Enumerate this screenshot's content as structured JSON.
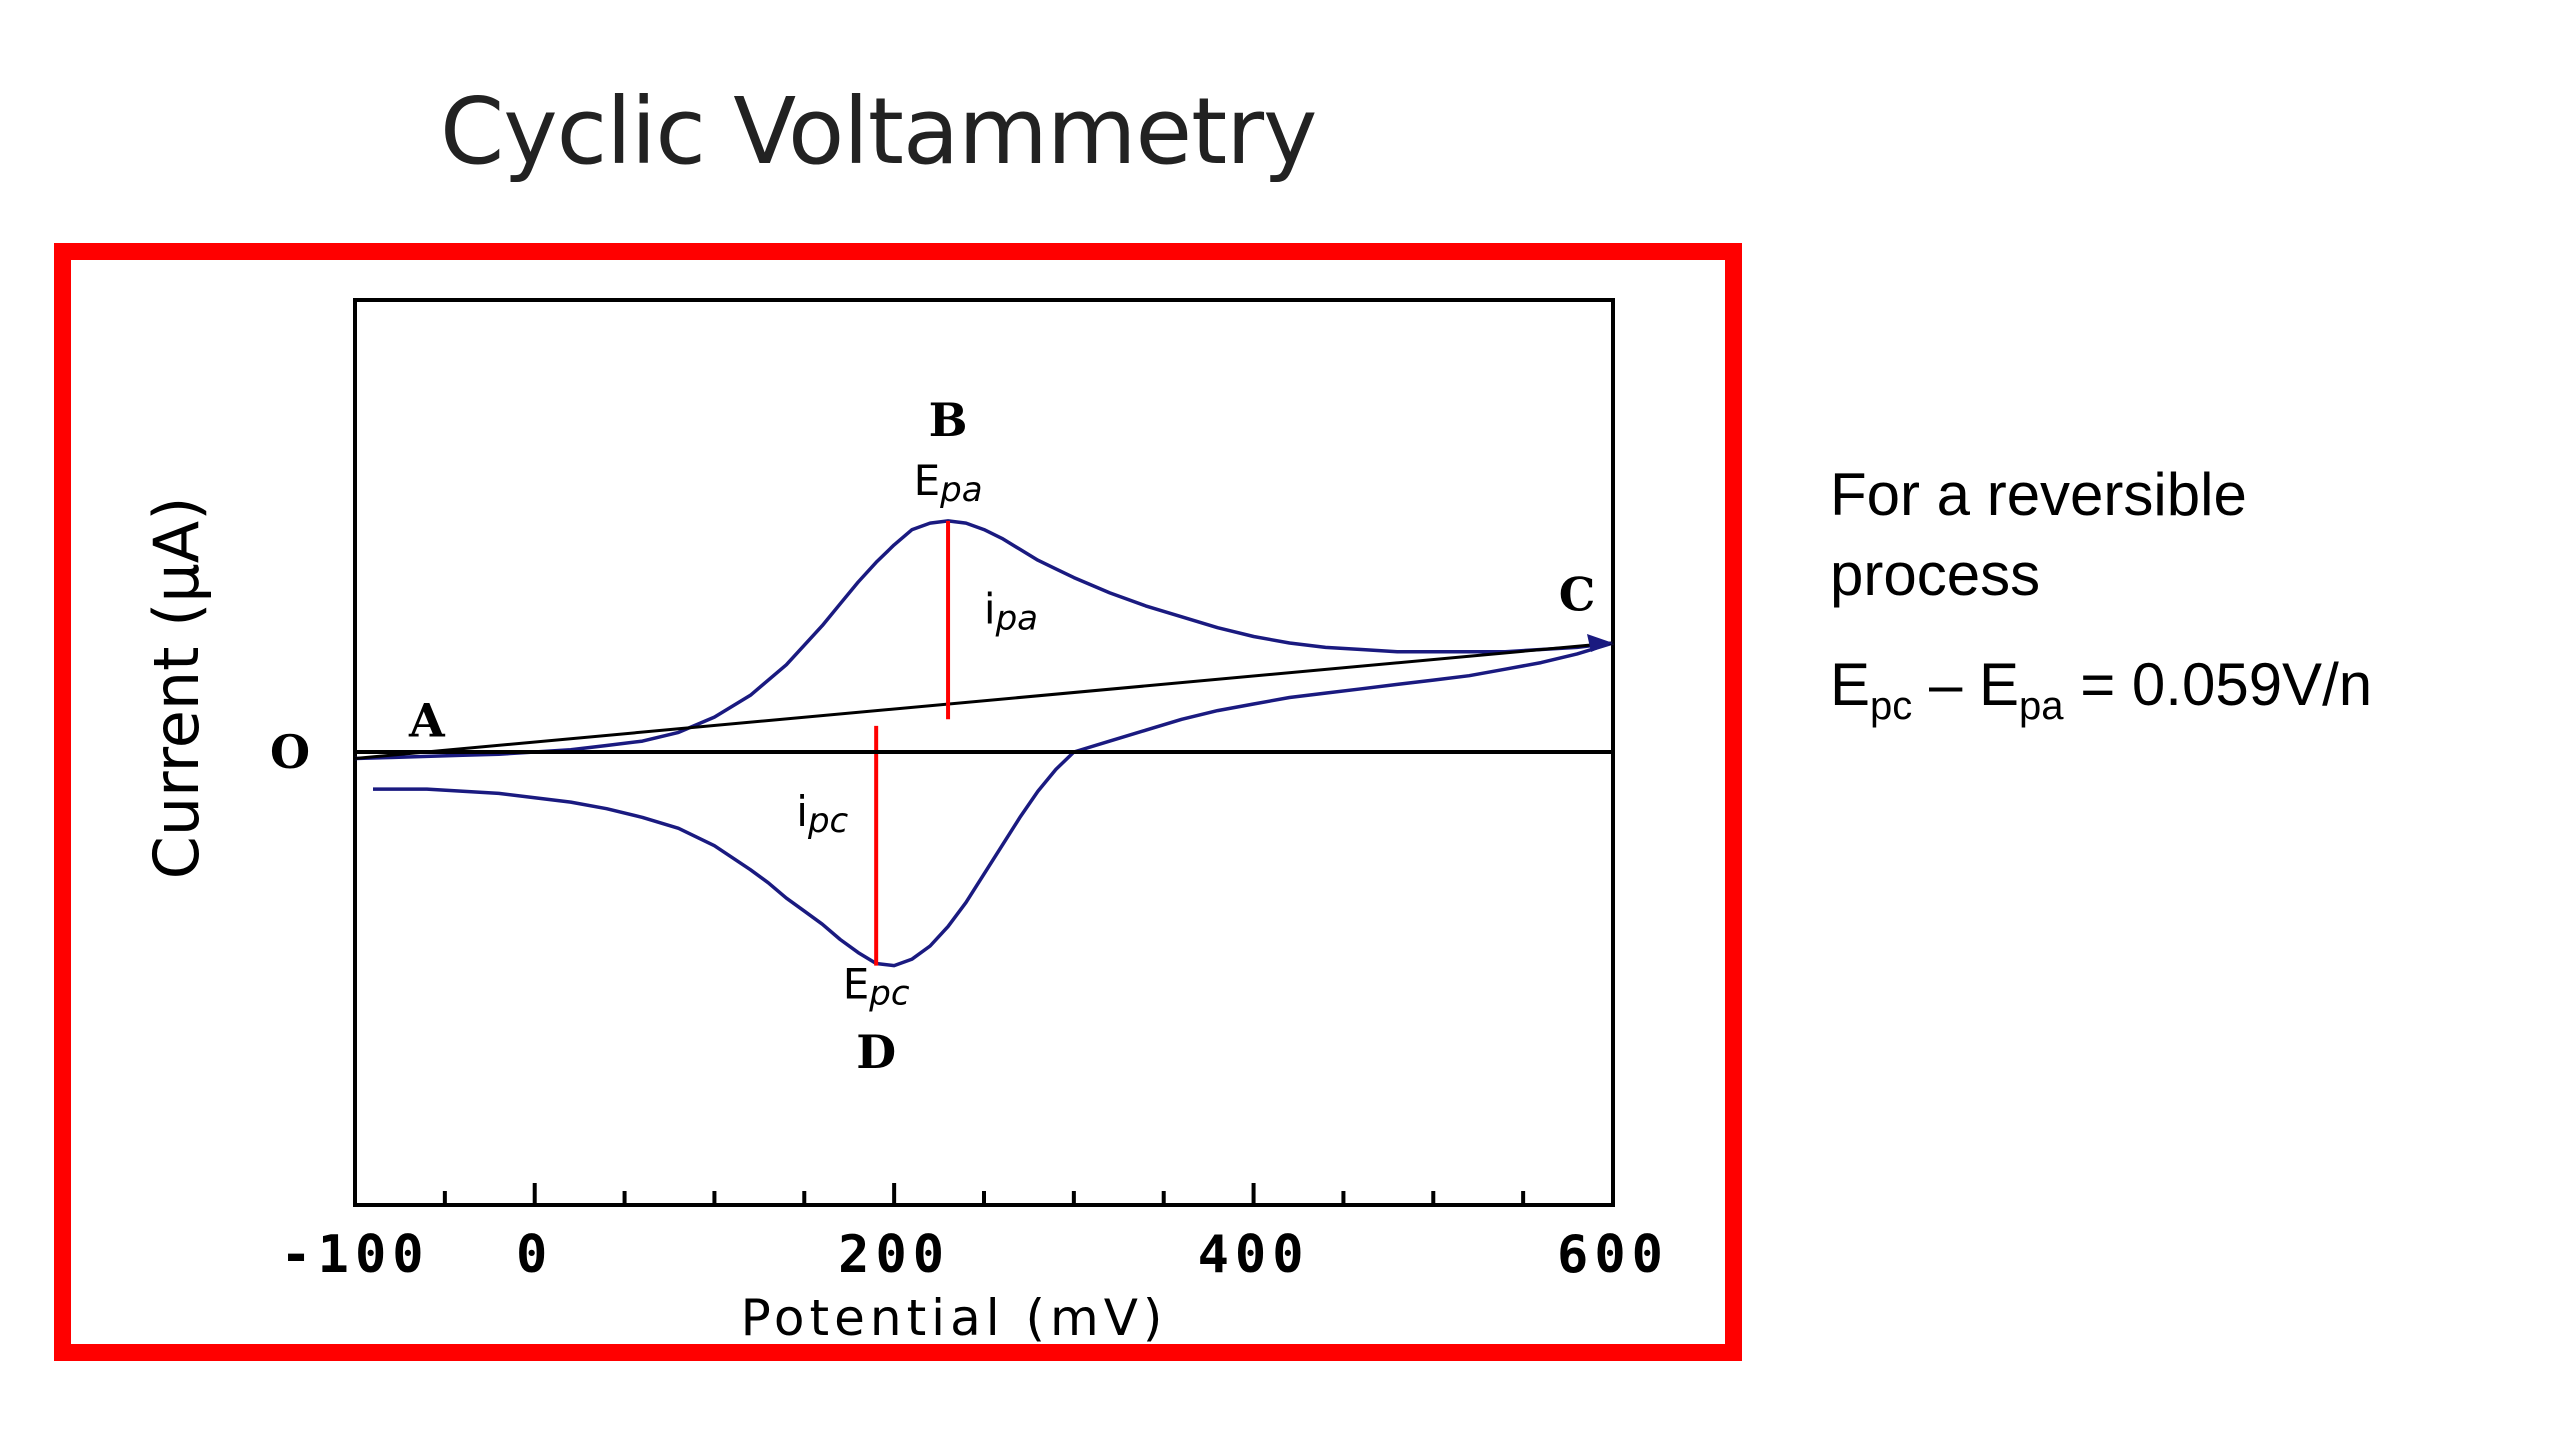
{
  "slide": {
    "title": "Cyclic Voltammetry"
  },
  "note": {
    "intro": "For a reversible process",
    "formula": {
      "e1": "E",
      "s1": "pc",
      "dash": " – ",
      "e2": "E",
      "s2": "pa",
      "rest": " = 0.059V/n"
    }
  },
  "colors": {
    "frame": "#ff0000",
    "curve": "#1a1a80",
    "marker": "#ff0000",
    "axis": "#000000"
  },
  "chart_data": {
    "type": "line",
    "title": "",
    "xlabel": "Potential (mV)",
    "ylabel": "Current (µA)",
    "xlim": [
      -100,
      600
    ],
    "x_ticks": [
      -100,
      0,
      200,
      400,
      600
    ],
    "x_tick_labels": [
      "-100",
      "0",
      "200",
      "400",
      "600"
    ],
    "x_minor_step": 50,
    "ylim": [
      -10,
      10
    ],
    "zero_label": "O",
    "grid": false,
    "series": [
      {
        "x": [
          -100,
          -80,
          -60,
          -40,
          -20,
          0,
          20,
          40,
          60,
          80,
          100,
          120,
          140,
          160,
          170,
          180,
          190,
          200,
          210,
          220,
          230,
          240,
          250,
          260,
          270,
          280,
          290,
          300,
          320,
          340,
          360,
          380,
          400,
          420,
          440,
          460,
          480,
          500,
          520,
          540,
          560,
          580,
          600
        ],
        "y": [
          -0.3,
          -0.25,
          -0.2,
          -0.15,
          -0.1,
          0.0,
          0.1,
          0.3,
          0.5,
          0.9,
          1.6,
          2.6,
          4.0,
          5.8,
          6.8,
          7.8,
          8.7,
          9.5,
          10.2,
          10.5,
          10.6,
          10.5,
          10.2,
          9.8,
          9.3,
          8.8,
          8.4,
          8.0,
          7.3,
          6.7,
          6.2,
          5.7,
          5.3,
          5.0,
          4.8,
          4.7,
          4.6,
          4.6,
          4.6,
          4.6,
          4.7,
          4.8,
          5.0
        ]
      },
      {
        "x": [
          600,
          580,
          560,
          540,
          520,
          500,
          480,
          460,
          440,
          420,
          400,
          380,
          360,
          340,
          320,
          300,
          290,
          280,
          270,
          260,
          250,
          240,
          230,
          220,
          210,
          200,
          190,
          180,
          170,
          160,
          150,
          140,
          130,
          120,
          100,
          80,
          60,
          40,
          20,
          0,
          -20,
          -40,
          -60,
          -80,
          -90
        ],
        "y": [
          5.0,
          4.5,
          4.1,
          3.8,
          3.5,
          3.3,
          3.1,
          2.9,
          2.7,
          2.5,
          2.2,
          1.9,
          1.5,
          1.0,
          0.5,
          0.0,
          -0.8,
          -1.8,
          -3.0,
          -4.3,
          -5.6,
          -6.9,
          -8.0,
          -8.9,
          -9.5,
          -9.8,
          -9.7,
          -9.2,
          -8.6,
          -7.9,
          -7.3,
          -6.7,
          -6.0,
          -5.4,
          -4.3,
          -3.5,
          -3.0,
          -2.6,
          -2.3,
          -2.1,
          -1.9,
          -1.8,
          -1.7,
          -1.7,
          -1.7
        ]
      },
      {
        "x": [
          -100,
          600
        ],
        "y": [
          -0.3,
          5.0
        ]
      }
    ],
    "annotations": [
      {
        "text": "A",
        "x": -60,
        "y": 0.7
      },
      {
        "text": "B",
        "x": 230,
        "y": 14.5
      },
      {
        "text": "C",
        "x": 580,
        "y": 6.5
      },
      {
        "text": "D",
        "x": 190,
        "y": -14.5
      },
      {
        "text": "Epa",
        "x": 230,
        "y": 11.8
      },
      {
        "text": "Epc",
        "x": 190,
        "y": -11.3
      },
      {
        "text": "ipa",
        "x": 265,
        "y": 5.9
      },
      {
        "text": "ipc",
        "x": 160,
        "y": -3.4
      }
    ],
    "markers": [
      {
        "name": "ipa",
        "x": 230,
        "y_from": 1.5,
        "y_to": 10.6
      },
      {
        "name": "ipc",
        "x": 190,
        "y_from": 1.2,
        "y_to": -9.8
      }
    ]
  }
}
